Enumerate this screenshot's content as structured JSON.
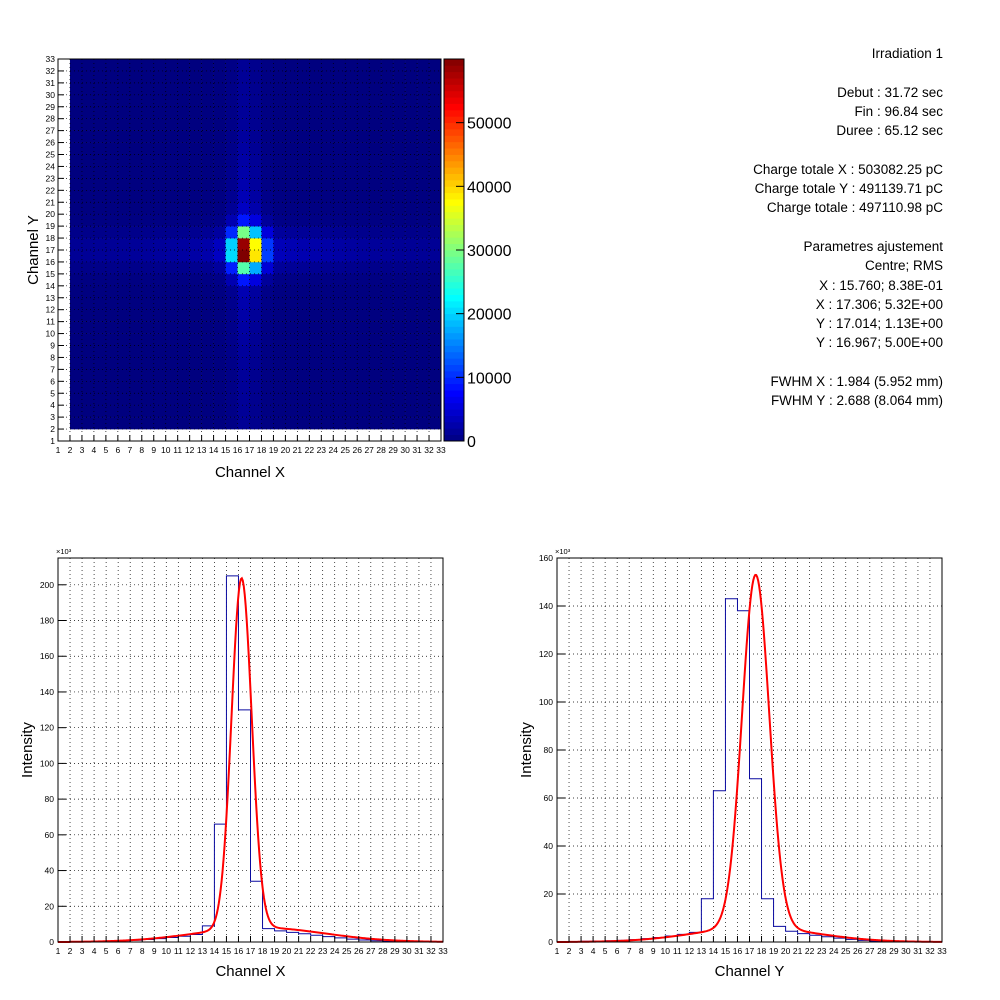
{
  "colors": {
    "histogram_line": "#0a0aa0",
    "fit_line": "#ff0000",
    "grid": "#000000",
    "palette": [
      "#00007f",
      "#0000ff",
      "#007fff",
      "#00ffff",
      "#7fff7f",
      "#ffff00",
      "#ff7f00",
      "#ff0000",
      "#7f0000"
    ]
  },
  "info": {
    "title": "Irradiation 1",
    "debut": "Debut : 31.72 sec",
    "fin": "Fin : 96.84 sec",
    "duree": "Duree : 65.12 sec",
    "charge_x": "Charge totale X : 503082.25 pC",
    "charge_y": "Charge totale Y : 491139.71 pC",
    "charge": "Charge totale : 497110.98 pC",
    "fit_title": "Parametres ajustement",
    "fit_header": "Centre; RMS",
    "fit_x1": "X : 15.760; 8.38E-01",
    "fit_x2": "X : 17.306; 5.32E+00",
    "fit_y1": "Y : 17.014; 1.13E+00",
    "fit_y2": "Y : 16.967; 5.00E+00",
    "fwhm_x": "FWHM X : 1.984 (5.952 mm)",
    "fwhm_y": "FWHM Y : 2.688 (8.064 mm)"
  },
  "chart_data": [
    {
      "type": "heatmap",
      "xlabel": "Channel X",
      "ylabel": "Channel Y",
      "xlim": [
        1,
        33
      ],
      "ylim": [
        1,
        33
      ],
      "x_ticks": [
        "1",
        "2",
        "3",
        "4",
        "5",
        "6",
        "7",
        "8",
        "9",
        "10",
        "11",
        "12",
        "13",
        "14",
        "15",
        "16",
        "17",
        "18",
        "19",
        "20",
        "21",
        "22",
        "23",
        "24",
        "25",
        "26",
        "27",
        "28",
        "29",
        "30",
        "31",
        "32",
        "33"
      ],
      "y_ticks": [
        "1",
        "2",
        "3",
        "4",
        "5",
        "6",
        "7",
        "8",
        "9",
        "10",
        "11",
        "12",
        "13",
        "14",
        "15",
        "16",
        "17",
        "18",
        "19",
        "20",
        "21",
        "22",
        "23",
        "24",
        "25",
        "26",
        "27",
        "28",
        "29",
        "30",
        "31",
        "32",
        "33"
      ],
      "z_range": [
        0,
        60000
      ],
      "z_ticks": [
        "0",
        "10000",
        "20000",
        "30000",
        "40000",
        "50000"
      ],
      "z_tick_values": [
        0,
        10000,
        20000,
        30000,
        40000,
        50000
      ],
      "x_profile": [
        0,
        200,
        300,
        400,
        500,
        700,
        1000,
        1400,
        1900,
        2500,
        3200,
        4200,
        9000,
        66000,
        205000,
        130000,
        34000,
        7500,
        6200,
        5400,
        4600,
        3800,
        3000,
        2300,
        1600,
        1100,
        700,
        400,
        250,
        150,
        60,
        0
      ],
      "y_profile": [
        0,
        200,
        300,
        400,
        500,
        700,
        1000,
        1400,
        1900,
        2500,
        3200,
        4000,
        18000,
        63000,
        143000,
        138000,
        68000,
        18000,
        6500,
        4500,
        3500,
        2800,
        2200,
        1600,
        1100,
        700,
        400,
        250,
        150,
        60,
        0,
        0
      ],
      "peak": 58000,
      "grid": true
    },
    {
      "type": "bar",
      "xlabel": "Channel X",
      "ylabel": "Intensity",
      "exponent_label": "×10³",
      "x_ticks": [
        "1",
        "2",
        "3",
        "4",
        "5",
        "6",
        "7",
        "8",
        "9",
        "10",
        "11",
        "12",
        "13",
        "14",
        "15",
        "16",
        "17",
        "18",
        "19",
        "20",
        "21",
        "22",
        "23",
        "24",
        "25",
        "26",
        "27",
        "28",
        "29",
        "30",
        "31",
        "32",
        "33"
      ],
      "xlim": [
        1,
        33
      ],
      "ylim": [
        0,
        215
      ],
      "y_ticks": [
        "0",
        "20",
        "40",
        "60",
        "80",
        "100",
        "120",
        "140",
        "160",
        "180",
        "200"
      ],
      "y_tick_values": [
        0,
        20,
        40,
        60,
        80,
        100,
        120,
        140,
        160,
        180,
        200
      ],
      "bins_start": 1,
      "values": [
        0,
        0.2,
        0.3,
        0.4,
        0.5,
        0.7,
        1.0,
        1.4,
        1.9,
        2.5,
        3.2,
        4.2,
        9,
        66,
        205,
        130,
        34,
        7.5,
        6.2,
        5.4,
        4.6,
        3.8,
        3.0,
        2.3,
        1.6,
        1.1,
        0.7,
        0.4,
        0.25,
        0.15,
        0.06,
        0
      ],
      "fit": {
        "center": 15.76,
        "sigma": 0.838,
        "amplitude": 196,
        "center2": 17.306,
        "sigma2": 5.32,
        "amplitude2": 8
      },
      "grid": true
    },
    {
      "type": "bar",
      "xlabel": "Channel Y",
      "ylabel": "Intensity",
      "exponent_label": "×10³",
      "x_ticks": [
        "1",
        "2",
        "3",
        "4",
        "5",
        "6",
        "7",
        "8",
        "9",
        "10",
        "11",
        "12",
        "13",
        "14",
        "15",
        "16",
        "17",
        "18",
        "19",
        "20",
        "21",
        "22",
        "23",
        "24",
        "25",
        "26",
        "27",
        "28",
        "29",
        "30",
        "31",
        "32",
        "33"
      ],
      "xlim": [
        1,
        33
      ],
      "ylim": [
        0,
        160
      ],
      "y_ticks": [
        "0",
        "20",
        "40",
        "60",
        "80",
        "100",
        "120",
        "140",
        "160"
      ],
      "y_tick_values": [
        0,
        20,
        40,
        60,
        80,
        100,
        120,
        140,
        160
      ],
      "bins_start": 1,
      "values": [
        0,
        0.2,
        0.3,
        0.4,
        0.5,
        0.7,
        1.0,
        1.4,
        1.9,
        2.5,
        3.2,
        4.0,
        18,
        63,
        143,
        138,
        68,
        18,
        6.5,
        4.5,
        3.5,
        2.8,
        2.2,
        1.6,
        1.1,
        0.7,
        0.4,
        0.25,
        0.15,
        0.06,
        0,
        0
      ],
      "fit": {
        "center": 17.014,
        "sigma": 1.13,
        "amplitude": 147,
        "center2": 16.967,
        "sigma2": 5.0,
        "amplitude2": 6
      },
      "grid": true
    }
  ]
}
